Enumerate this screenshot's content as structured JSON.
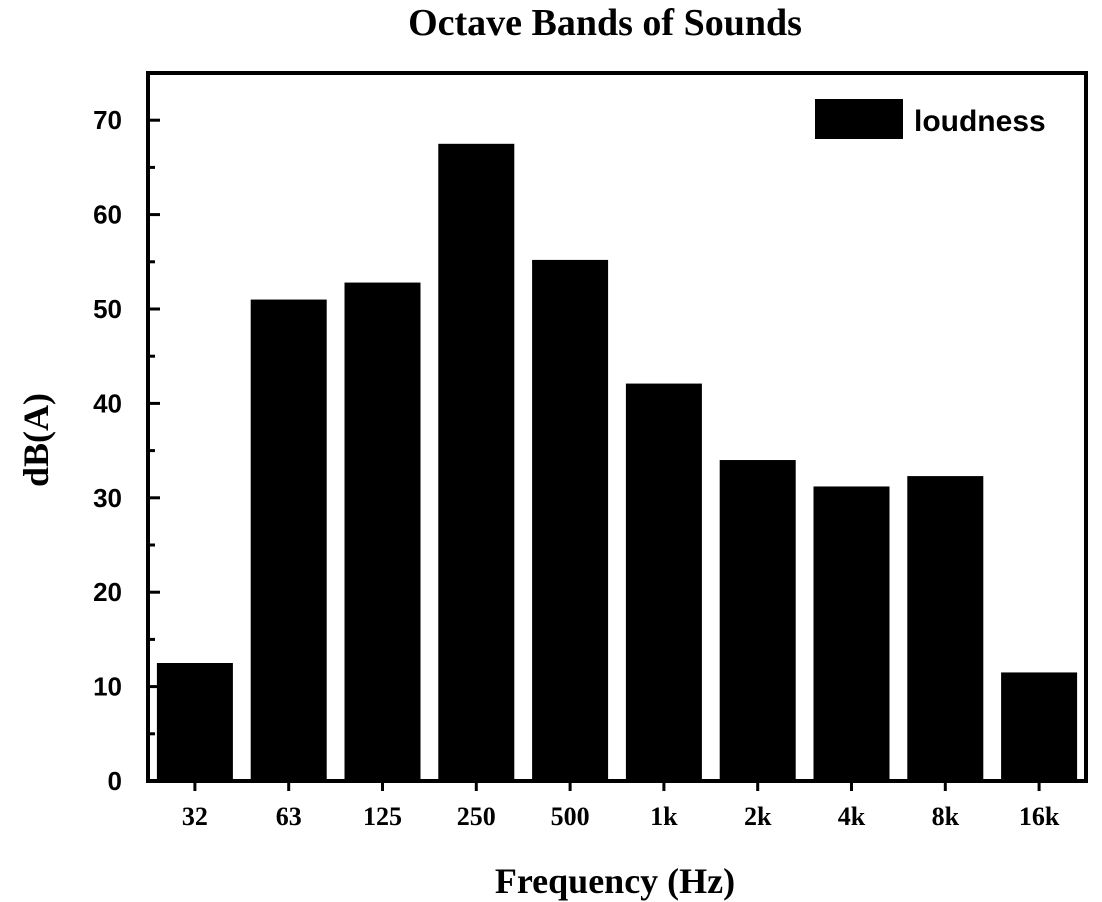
{
  "chart_data": {
    "type": "bar",
    "title": "Octave Bands of Sounds",
    "xlabel": "Frequency (Hz)",
    "ylabel": "dB(A)",
    "categories": [
      "32",
      "63",
      "125",
      "250",
      "500",
      "1k",
      "2k",
      "4k",
      "8k",
      "16k"
    ],
    "series": [
      {
        "name": "loudness",
        "values": [
          12.5,
          51,
          52.8,
          67.5,
          55.2,
          42.1,
          34,
          31.2,
          32.3,
          11.5
        ]
      }
    ],
    "ylim": [
      0,
      75
    ],
    "yticks": [
      "0",
      "10",
      "20",
      "30",
      "40",
      "50",
      "60",
      "70"
    ],
    "ytick_values": [
      0,
      10,
      20,
      30,
      40,
      50,
      60,
      70
    ],
    "grid": false,
    "legend_position": "top-right",
    "bar_color": "#000000"
  }
}
